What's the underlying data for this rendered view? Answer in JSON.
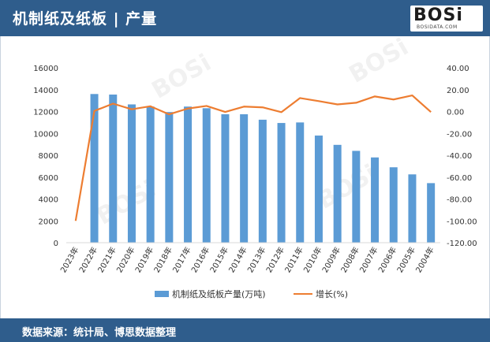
{
  "header": {
    "title": "机制纸及纸板 | 产量"
  },
  "logo": {
    "main": "BOSi",
    "sub": "BOSIDATA.COM"
  },
  "footer": {
    "source": "数据来源：统计局、博思数据整理"
  },
  "colors": {
    "bar": "#5b9bd5",
    "line": "#ed7d31",
    "header": "#2f5d8c"
  },
  "chart_data": {
    "type": "bar+line",
    "categories": [
      "2023年",
      "2022年",
      "2021年",
      "2020年",
      "2019年",
      "2018年",
      "2017年",
      "2016年",
      "2015年",
      "2014年",
      "2013年",
      "2012年",
      "2011年",
      "2010年",
      "2009年",
      "2008年",
      "2007年",
      "2006年",
      "2005年",
      "2004年"
    ],
    "series": [
      {
        "name": "机制纸及纸板产量(万吨)",
        "type": "bar",
        "axis": "left",
        "values": [
          null,
          13600,
          13550,
          12650,
          12450,
          11950,
          12450,
          12300,
          11750,
          11750,
          11250,
          10950,
          11000,
          9800,
          8950,
          8400,
          7800,
          6900,
          6250,
          5450
        ]
      },
      {
        "name": "增长(%)",
        "type": "line",
        "axis": "right",
        "values": [
          -100.0,
          0.5,
          7.2,
          2.0,
          4.8,
          -2.6,
          2.7,
          5.1,
          -0.4,
          4.5,
          3.8,
          -0.6,
          12.3,
          9.5,
          6.5,
          8.0,
          13.8,
          11.0,
          14.7,
          -0.5
        ]
      }
    ],
    "left_axis": {
      "min": 0,
      "max": 16000,
      "ticks": [
        "0",
        "2000",
        "4000",
        "6000",
        "8000",
        "10000",
        "12000",
        "14000",
        "16000"
      ]
    },
    "right_axis": {
      "min": -120,
      "max": 40,
      "ticks": [
        "-120.00",
        "-100.00",
        "-80.00",
        "-60.00",
        "-40.00",
        "-20.00",
        "0.00",
        "20.00",
        "40.00"
      ]
    },
    "legend": {
      "position": "bottom",
      "bar_label": "机制纸及纸板产量(万吨)",
      "line_label": "增长(%)"
    }
  }
}
